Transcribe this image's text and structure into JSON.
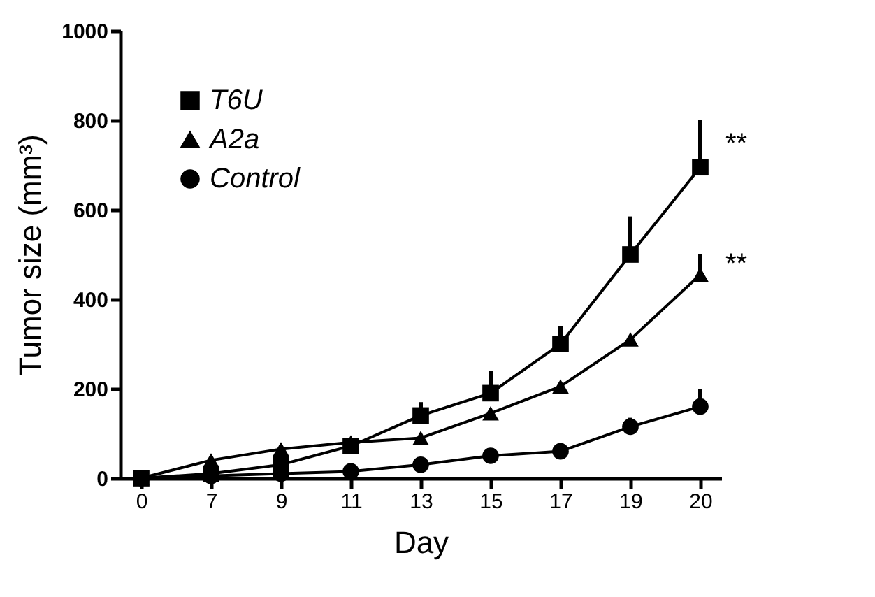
{
  "chart_data": {
    "type": "line",
    "xlabel": "Day",
    "ylabel": "Tumor size (mm³)",
    "categories": [
      "0",
      "7",
      "9",
      "11",
      "13",
      "15",
      "17",
      "19",
      "20"
    ],
    "series": [
      {
        "name": "T6U",
        "color": "#000000",
        "marker": "square",
        "values": [
          0,
          10,
          30,
          72,
          140,
          190,
          300,
          500,
          695
        ],
        "errors": [
          null,
          null,
          null,
          null,
          [
            140,
            170
          ],
          [
            190,
            240
          ],
          [
            300,
            340
          ],
          [
            500,
            585
          ],
          [
            695,
            800
          ]
        ]
      },
      {
        "name": "A2a",
        "color": "#000000",
        "marker": "triangle",
        "values": [
          0,
          40,
          65,
          80,
          90,
          145,
          205,
          310,
          455
        ],
        "errors": [
          null,
          null,
          null,
          null,
          null,
          null,
          null,
          null,
          [
            455,
            500
          ]
        ]
      },
      {
        "name": "Control",
        "color": "#000000",
        "marker": "circle",
        "values": [
          0,
          5,
          10,
          15,
          30,
          50,
          60,
          115,
          160
        ],
        "errors": [
          null,
          null,
          null,
          null,
          null,
          null,
          null,
          [
            115,
            135
          ],
          [
            160,
            200
          ]
        ]
      }
    ],
    "ylim": [
      0,
      1000
    ],
    "yticks": [
      0,
      200,
      400,
      600,
      800,
      1000
    ],
    "grid": false,
    "legend": "top left",
    "annotations": [
      "**",
      "**"
    ]
  }
}
